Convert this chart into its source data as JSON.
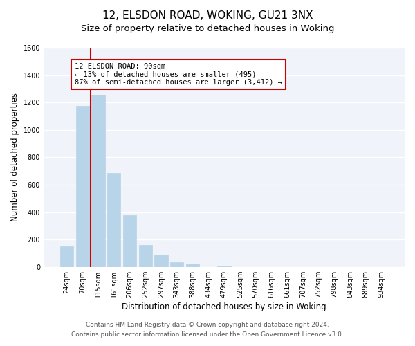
{
  "title": "12, ELSDON ROAD, WOKING, GU21 3NX",
  "subtitle": "Size of property relative to detached houses in Woking",
  "xlabel": "Distribution of detached houses by size in Woking",
  "ylabel": "Number of detached properties",
  "bar_labels": [
    "24sqm",
    "70sqm",
    "115sqm",
    "161sqm",
    "206sqm",
    "252sqm",
    "297sqm",
    "343sqm",
    "388sqm",
    "434sqm",
    "479sqm",
    "525sqm",
    "570sqm",
    "616sqm",
    "661sqm",
    "707sqm",
    "752sqm",
    "798sqm",
    "843sqm",
    "889sqm",
    "934sqm"
  ],
  "bar_values": [
    150,
    1175,
    1255,
    685,
    375,
    160,
    90,
    35,
    22,
    0,
    10,
    0,
    0,
    0,
    0,
    0,
    0,
    0,
    0,
    0,
    0
  ],
  "bar_color": "#b8d4e8",
  "highlight_line_color": "#cc0000",
  "annotation_text": "12 ELSDON ROAD: 90sqm\n← 13% of detached houses are smaller (495)\n87% of semi-detached houses are larger (3,412) →",
  "annotation_box_color": "#ffffff",
  "annotation_box_edge": "#cc0000",
  "ylim": [
    0,
    1600
  ],
  "yticks": [
    0,
    200,
    400,
    600,
    800,
    1000,
    1200,
    1400,
    1600
  ],
  "footer1": "Contains HM Land Registry data © Crown copyright and database right 2024.",
  "footer2": "Contains public sector information licensed under the Open Government Licence v3.0.",
  "background_color": "#ffffff",
  "plot_bg_color": "#f0f4fa",
  "grid_color": "#ffffff",
  "title_fontsize": 11,
  "subtitle_fontsize": 9.5,
  "label_fontsize": 8.5,
  "tick_fontsize": 7,
  "footer_fontsize": 6.5,
  "annotation_fontsize": 7.5
}
